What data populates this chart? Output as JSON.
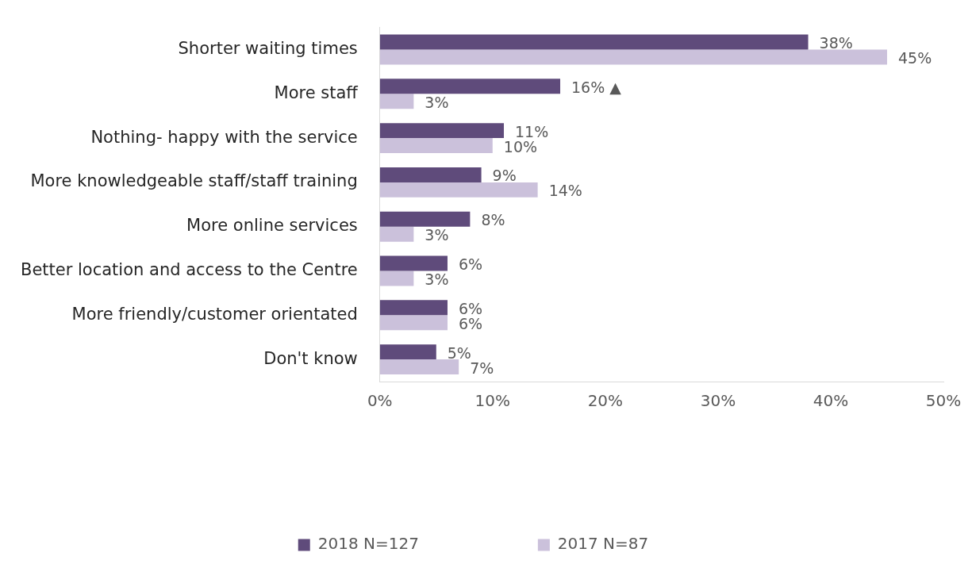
{
  "chart_data": {
    "type": "bar",
    "orientation": "horizontal",
    "categories": [
      "Shorter waiting times",
      "More staff",
      "Nothing- happy with the service",
      "More knowledgeable staff/staff training",
      "More online services",
      "Better location and access to the Centre",
      "More friendly/customer orientated",
      "Don't know"
    ],
    "series": [
      {
        "name": "2018 N=127",
        "color": "#5f4b7b",
        "values": [
          38,
          16,
          11,
          9,
          8,
          6,
          6,
          5
        ],
        "value_labels": [
          "38%",
          "16% ▲",
          "11%",
          "9%",
          "8%",
          "6%",
          "6%",
          "5%"
        ]
      },
      {
        "name": "2017 N=87",
        "color": "#cbc1db",
        "values": [
          45,
          3,
          10,
          14,
          3,
          3,
          6,
          7
        ],
        "value_labels": [
          "45%",
          "3%",
          "10%",
          "14%",
          "3%",
          "3%",
          "6%",
          "7%"
        ]
      }
    ],
    "xlim": [
      0,
      50
    ],
    "xticks": [
      {
        "value": 0,
        "label": "0%"
      },
      {
        "value": 10,
        "label": "10%"
      },
      {
        "value": 20,
        "label": "20%"
      },
      {
        "value": 30,
        "label": "30%"
      },
      {
        "value": 40,
        "label": "40%"
      },
      {
        "value": 50,
        "label": "50%"
      }
    ],
    "grid": false,
    "legend": "bottom"
  }
}
